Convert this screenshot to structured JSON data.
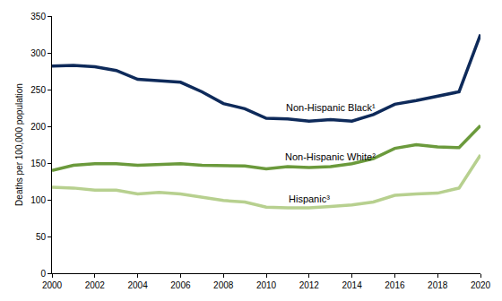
{
  "chart_data": {
    "type": "line",
    "y_label": "Deaths per 100,000 population",
    "x": [
      2000,
      2001,
      2002,
      2003,
      2004,
      2005,
      2006,
      2007,
      2008,
      2009,
      2010,
      2011,
      2012,
      2013,
      2014,
      2015,
      2016,
      2017,
      2018,
      2019,
      2020
    ],
    "series": [
      {
        "name": "Non-Hispanic Black¹",
        "color": "#0e2a5a",
        "values": [
          282,
          283,
          281,
          276,
          264,
          262,
          260,
          247,
          231,
          224,
          211,
          210,
          207,
          209,
          207,
          216,
          230,
          235,
          241,
          247,
          325
        ]
      },
      {
        "name": "Non-Hispanic White²",
        "color": "#6b9a3c",
        "values": [
          140,
          147,
          149,
          149,
          147,
          148,
          149,
          147,
          146,
          146,
          142,
          145,
          144,
          145,
          149,
          156,
          170,
          175,
          172,
          171,
          201
        ]
      },
      {
        "name": "Hispanic³",
        "color": "#b7d08f",
        "values": [
          117,
          116,
          113,
          113,
          108,
          110,
          108,
          103,
          99,
          97,
          90,
          89,
          89,
          91,
          93,
          97,
          106,
          108,
          109,
          116,
          161
        ]
      }
    ],
    "xlim": [
      2000,
      2020
    ],
    "xticks": [
      2000,
      2002,
      2004,
      2006,
      2008,
      2010,
      2012,
      2014,
      2016,
      2018,
      2020
    ],
    "ylim": [
      0,
      350
    ],
    "yticks": [
      0,
      50,
      100,
      150,
      200,
      250,
      300,
      350
    ],
    "grid": false
  }
}
